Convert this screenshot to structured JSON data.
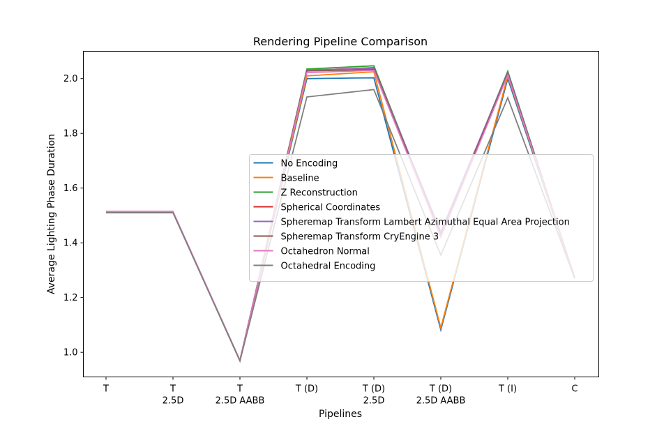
{
  "chart_data": {
    "type": "line",
    "title": "Rendering Pipeline Comparison",
    "xlabel": "Pipelines",
    "ylabel": "Average Lighting Phase Duration",
    "categories": [
      [
        "T"
      ],
      [
        "T",
        "2.5D"
      ],
      [
        "T",
        "2.5D AABB"
      ],
      [
        "T (D)"
      ],
      [
        "T (D)",
        "2.5D"
      ],
      [
        "T (D)",
        "2.5D AABB"
      ],
      [
        "T (I)"
      ],
      [
        "C"
      ]
    ],
    "yticks": [
      "1.0",
      "1.2",
      "1.4",
      "1.6",
      "1.8",
      "2.0"
    ],
    "ytick_values": [
      1.0,
      1.2,
      1.4,
      1.6,
      1.8,
      2.0
    ],
    "ylim": [
      0.91,
      2.1
    ],
    "grid": false,
    "legend_position": "center-right",
    "series": [
      {
        "name": "No Encoding",
        "color": "#1f77b4",
        "values": [
          1.513,
          1.513,
          0.97,
          2.0,
          2.003,
          1.082,
          2.0,
          1.272
        ]
      },
      {
        "name": "Baseline",
        "color": "#ff7f0e",
        "values": [
          1.513,
          1.513,
          0.97,
          2.01,
          2.025,
          1.09,
          2.01,
          1.272
        ]
      },
      {
        "name": "Z Reconstruction",
        "color": "#2ca02c",
        "values": [
          1.513,
          1.513,
          0.97,
          2.035,
          2.047,
          1.43,
          2.027,
          1.272
        ]
      },
      {
        "name": "Spherical Coordinates",
        "color": "#d62728",
        "values": [
          1.513,
          1.513,
          0.97,
          2.03,
          2.04,
          1.43,
          2.02,
          1.272
        ]
      },
      {
        "name": "Spheremap Transform Lambert Azimuthal Equal Area Projection",
        "color": "#9467bd",
        "values": [
          1.513,
          1.513,
          0.97,
          2.032,
          2.037,
          1.44,
          2.022,
          1.272
        ]
      },
      {
        "name": "Spheremap Transform CryEngine 3",
        "color": "#8c564b",
        "values": [
          1.513,
          1.513,
          0.97,
          2.028,
          2.033,
          1.43,
          2.018,
          1.272
        ]
      },
      {
        "name": "Octahedron Normal",
        "color": "#e377c2",
        "values": [
          1.515,
          1.515,
          0.97,
          2.022,
          2.03,
          1.42,
          2.013,
          1.272
        ]
      },
      {
        "name": "Octahedral Encoding",
        "color": "#7f7f7f",
        "values": [
          1.51,
          1.51,
          0.968,
          1.933,
          1.96,
          1.355,
          1.93,
          1.27
        ]
      }
    ]
  }
}
